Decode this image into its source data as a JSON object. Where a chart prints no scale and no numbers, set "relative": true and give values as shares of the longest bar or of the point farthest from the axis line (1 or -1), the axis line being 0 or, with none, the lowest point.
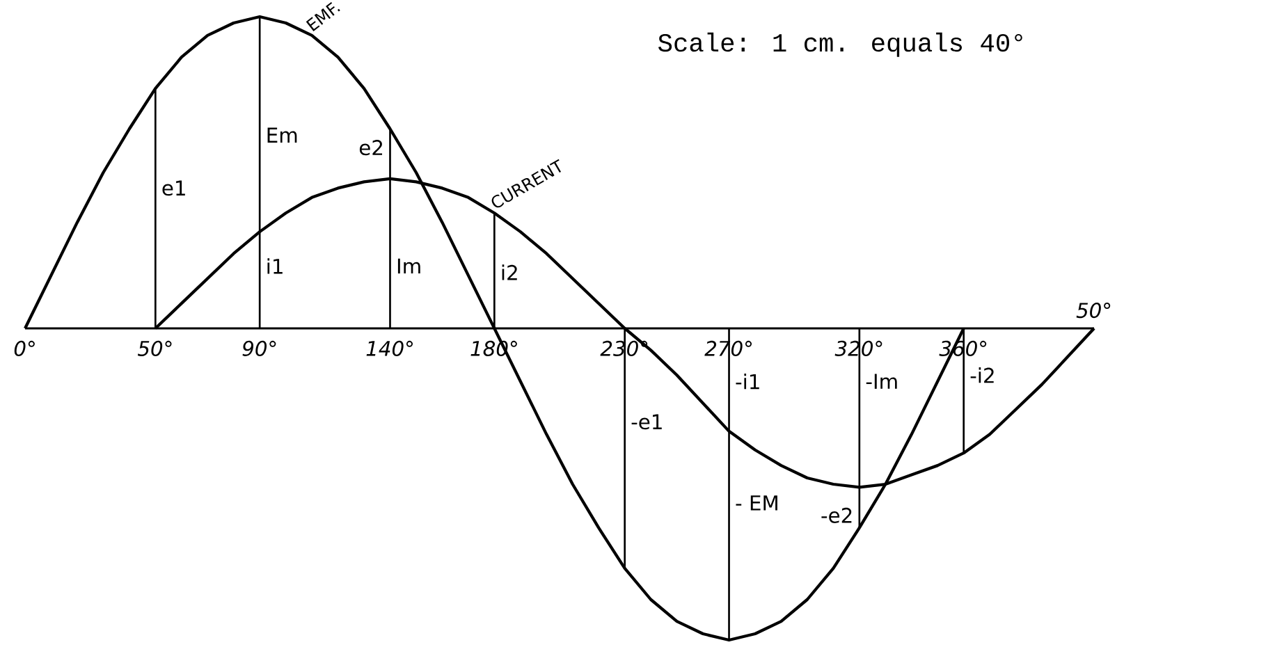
{
  "chart_data": {
    "type": "line",
    "relative": true,
    "xlim": [
      0,
      410
    ],
    "xticks": [
      {
        "value": 0,
        "label": "0°"
      },
      {
        "value": 50,
        "label": "50°"
      },
      {
        "value": 90,
        "label": "90°"
      },
      {
        "value": 140,
        "label": "140°"
      },
      {
        "value": 180,
        "label": "180°"
      },
      {
        "value": 230,
        "label": "230°"
      },
      {
        "value": 270,
        "label": "270°"
      },
      {
        "value": 320,
        "label": "320°"
      },
      {
        "value": 360,
        "label": "360°"
      }
    ],
    "series": [
      {
        "name": "EMF.",
        "color": "#000000",
        "x": [
          0,
          10,
          20,
          30,
          40,
          50,
          60,
          70,
          80,
          90,
          100,
          110,
          120,
          130,
          140,
          150,
          160,
          170,
          180,
          190,
          200,
          210,
          220,
          230,
          240,
          250,
          260,
          270,
          280,
          290,
          300,
          310,
          320,
          330,
          340,
          350,
          360
        ],
        "values": [
          0,
          0.17,
          0.34,
          0.5,
          0.64,
          0.77,
          0.87,
          0.94,
          0.98,
          1,
          0.98,
          0.94,
          0.87,
          0.77,
          0.64,
          0.5,
          0.34,
          0.17,
          0,
          -0.17,
          -0.34,
          -0.5,
          -0.64,
          -0.77,
          -0.87,
          -0.94,
          -0.98,
          -1,
          -0.98,
          -0.94,
          -0.87,
          -0.77,
          -0.64,
          -0.5,
          -0.34,
          -0.17,
          0
        ]
      },
      {
        "type": "bar",
        "color": "#000000",
        "x": [
          50,
          90,
          140,
          180,
          230,
          270,
          320,
          360
        ],
        "values": [
          0.77,
          1,
          0.64,
          0.37,
          -0.77,
          -1,
          -0.64,
          -0.4
        ]
      },
      {
        "name": "CURRENT",
        "color": "#000000",
        "x": [
          50,
          60,
          70,
          80,
          90,
          100,
          110,
          120,
          130,
          140,
          150,
          160,
          170,
          180,
          190,
          200,
          210,
          220,
          230,
          240,
          250,
          260,
          270,
          280,
          290,
          300,
          310,
          320,
          330,
          340,
          350,
          360,
          370,
          380,
          390,
          400,
          410
        ],
        "values": [
          0,
          0.08,
          0.16,
          0.24,
          0.31,
          0.37,
          0.42,
          0.45,
          0.47,
          0.48,
          0.47,
          0.45,
          0.42,
          0.37,
          0.31,
          0.24,
          0.16,
          0.08,
          0,
          -0.07,
          -0.15,
          -0.24,
          -0.33,
          -0.39,
          -0.44,
          -0.48,
          -0.5,
          -0.51,
          -0.5,
          -0.47,
          -0.44,
          -0.4,
          -0.34,
          -0.26,
          -0.18,
          -0.09,
          0
        ]
      }
    ],
    "annotations": [
      "Scale: 1 cm. equals 40°",
      "50°",
      {
        "text": "e1",
        "x": 50,
        "y": 0.45
      },
      {
        "text": "Em",
        "x": 90,
        "y": 0.62
      },
      {
        "text": "e2",
        "x": 140,
        "y": 0.58
      },
      {
        "text": "i1",
        "x": 90,
        "y": 0.2
      },
      {
        "text": "Im",
        "x": 140,
        "y": 0.2
      },
      {
        "text": "i2",
        "x": 180,
        "y": 0.18
      },
      {
        "text": "-e1",
        "x": 230,
        "y": -0.3
      },
      {
        "text": "- EM",
        "x": 270,
        "y": -0.56
      },
      {
        "text": "-e2",
        "x": 320,
        "y": -0.6
      },
      {
        "text": "-i1",
        "x": 270,
        "y": -0.17
      },
      {
        "text": "-Im",
        "x": 320,
        "y": -0.17
      },
      {
        "text": "-i2",
        "x": 360,
        "y": -0.15
      }
    ]
  }
}
